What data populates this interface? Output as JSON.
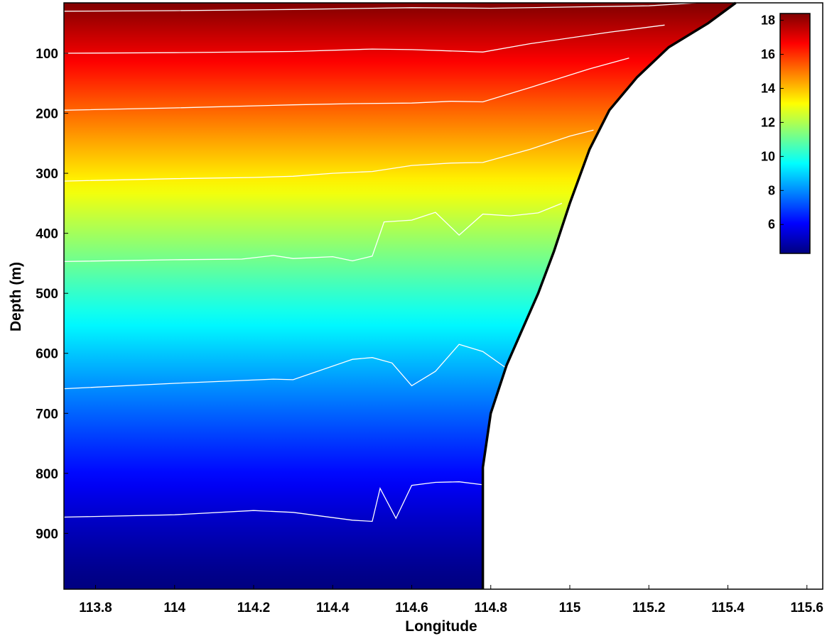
{
  "chart_data": {
    "type": "heatmap",
    "title": "",
    "xlabel": "Longitude",
    "ylabel": "Depth (m)",
    "xlim": [
      113.72,
      115.64
    ],
    "ylim": [
      993,
      16
    ],
    "xticks": [
      113.8,
      114,
      114.2,
      114.4,
      114.6,
      114.8,
      115,
      115.2,
      115.4,
      115.6
    ],
    "xtick_labels": [
      "113.8",
      "114",
      "114.2",
      "114.4",
      "114.6",
      "114.8",
      "115",
      "115.2",
      "115.4",
      "115.6"
    ],
    "yticks": [
      100,
      200,
      300,
      400,
      500,
      600,
      700,
      800,
      900
    ],
    "ytick_labels": [
      "100",
      "200",
      "300",
      "400",
      "500",
      "600",
      "700",
      "800",
      "900"
    ],
    "colorbar": {
      "range": [
        4.3,
        18.4
      ],
      "ticks": [
        6,
        8,
        10,
        12,
        14,
        16,
        18
      ],
      "tick_labels": [
        "6",
        "8",
        "10",
        "12",
        "14",
        "16",
        "18"
      ],
      "colormap": "jet",
      "placement": "top-right"
    },
    "field": {
      "surface_value": 18.4,
      "bottom_value": 4.3
    },
    "contour_lines": [
      {
        "x": [
          113.72,
          114.0,
          114.3,
          114.6,
          114.8,
          115.0,
          115.2,
          115.32
        ],
        "depth": [
          30,
          29,
          27,
          24,
          25,
          23,
          21,
          16
        ]
      },
      {
        "x": [
          113.72,
          114.0,
          114.3,
          114.5,
          114.6,
          114.78,
          114.9,
          115.1,
          115.24
        ],
        "depth": [
          100,
          99,
          97,
          93,
          94,
          98,
          84,
          65,
          53
        ]
      },
      {
        "x": [
          113.72,
          114.0,
          114.3,
          114.45,
          114.6,
          114.7,
          114.78,
          114.9,
          115.05,
          115.15
        ],
        "depth": [
          195,
          191,
          186,
          184,
          183,
          180,
          181,
          157,
          126,
          108
        ]
      },
      {
        "x": [
          113.72,
          114.0,
          114.2,
          114.3,
          114.4,
          114.5,
          114.6,
          114.7,
          114.78,
          114.9,
          115.0,
          115.06
        ],
        "depth": [
          313,
          309,
          307,
          305,
          300,
          297,
          287,
          283,
          282,
          260,
          238,
          228
        ]
      },
      {
        "x": [
          113.72,
          114.0,
          114.17,
          114.25,
          114.3,
          114.4,
          114.45,
          114.5,
          114.53,
          114.6,
          114.66,
          114.72,
          114.78,
          114.85,
          114.92,
          114.98
        ],
        "depth": [
          447,
          444,
          443,
          437,
          442,
          439,
          446,
          438,
          381,
          378,
          365,
          403,
          368,
          371,
          366,
          350
        ]
      },
      {
        "x": [
          113.72,
          114.0,
          114.25,
          114.3,
          114.45,
          114.5,
          114.55,
          114.6,
          114.66,
          114.72,
          114.78,
          114.84
        ],
        "depth": [
          659,
          650,
          643,
          644,
          610,
          607,
          616,
          654,
          630,
          585,
          597,
          625
        ]
      },
      {
        "x": [
          113.72,
          114.0,
          114.2,
          114.3,
          114.45,
          114.5,
          114.52,
          114.56,
          114.6,
          114.66,
          114.72,
          114.78
        ],
        "depth": [
          873,
          869,
          862,
          865,
          878,
          880,
          825,
          875,
          820,
          815,
          814,
          819
        ]
      }
    ],
    "bathymetry": {
      "x": [
        114.78,
        114.78,
        114.8,
        114.84,
        114.88,
        114.92,
        114.96,
        115.0,
        115.05,
        115.1,
        115.17,
        115.25,
        115.35,
        115.42
      ],
      "depth": [
        993,
        790,
        700,
        620,
        560,
        500,
        430,
        350,
        260,
        195,
        140,
        90,
        50,
        16
      ]
    }
  }
}
